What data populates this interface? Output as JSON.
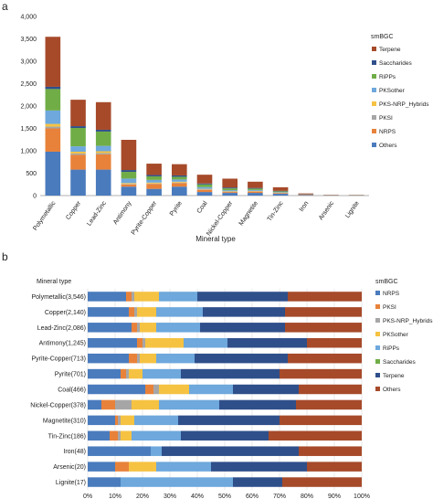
{
  "panels": [
    {
      "label": "a"
    },
    {
      "label": "b"
    }
  ],
  "chart_data": [
    {
      "type": "bar",
      "stacked": true,
      "panel": "a",
      "xlabel": "Mineral type",
      "ylabel": "",
      "ylim": [
        0,
        4000
      ],
      "yticks": [
        "0",
        "500",
        "1,000",
        "1,500",
        "2,000",
        "2,500",
        "3,000",
        "3,500",
        "4,000"
      ],
      "ytick_values": [
        0,
        500,
        1000,
        1500,
        2000,
        2500,
        3000,
        3500,
        4000
      ],
      "legend_title": "smBGC",
      "legend_position": "right",
      "grid": false,
      "categories": [
        "Polymetallic",
        "Copper",
        "Lead-Zinc",
        "Antimony",
        "Pyrite-Copper",
        "Pyrite",
        "Coal",
        "Nickel-Copper",
        "Magnetite",
        "Tin-Zinc",
        "Iron",
        "Arsenic",
        "Lignite"
      ],
      "series": [
        {
          "name": "Others",
          "color": "#4a7bbd",
          "values": [
            980,
            580,
            580,
            200,
            150,
            200,
            80,
            60,
            60,
            40,
            12,
            5,
            3
          ]
        },
        {
          "name": "NRPS",
          "color": "#e8823a",
          "values": [
            520,
            330,
            340,
            50,
            110,
            80,
            50,
            20,
            30,
            15,
            7,
            3,
            2
          ]
        },
        {
          "name": "PKSI",
          "color": "#a6a6a6",
          "values": [
            40,
            30,
            30,
            10,
            10,
            10,
            10,
            10,
            5,
            5,
            1,
            1,
            1
          ]
        },
        {
          "name": "PKS-NRP_Hybrids",
          "color": "#f5c242",
          "values": [
            60,
            40,
            40,
            20,
            20,
            20,
            10,
            10,
            10,
            5,
            1,
            1,
            1
          ]
        },
        {
          "name": "PKSother",
          "color": "#6ea8dc",
          "values": [
            300,
            120,
            120,
            100,
            60,
            50,
            40,
            20,
            20,
            10,
            3,
            2,
            2
          ]
        },
        {
          "name": "RiPPs",
          "color": "#70ad47",
          "values": [
            480,
            410,
            320,
            150,
            80,
            60,
            60,
            40,
            30,
            20,
            4,
            2,
            2
          ]
        },
        {
          "name": "Saccharides",
          "color": "#2f4f8a",
          "values": [
            50,
            40,
            40,
            40,
            30,
            30,
            20,
            20,
            15,
            10,
            2,
            1,
            1
          ]
        },
        {
          "name": "Terpene",
          "color": "#a64a2a",
          "values": [
            1116,
            590,
            616,
            675,
            253,
            251,
            196,
            198,
            140,
            81,
            18,
            5,
            5
          ]
        }
      ]
    },
    {
      "type": "bar",
      "orientation": "horizontal",
      "stacked": true,
      "percent": true,
      "panel": "b",
      "category_header": "Mineral type",
      "legend_title": "smBGC",
      "legend_position": "right",
      "grid": true,
      "xlim": [
        0,
        100
      ],
      "xticks": [
        "0%",
        "10%",
        "20%",
        "30%",
        "40%",
        "50%",
        "60%",
        "70%",
        "80%",
        "90%",
        "100%"
      ],
      "categories": [
        "Polymetallic(3,546)",
        "Copper(2,140)",
        "Lead-Zinc(2,086)",
        "Antimony(1,245)",
        "Pyrite-Copper(713)",
        "Pyrite(701)",
        "Coal(466)",
        "Nickel-Copper(378)",
        "Magnetite(310)",
        "Tin-Zinc(186)",
        "Iron(48)",
        "Arsenic(20)",
        "Lignite(17)"
      ],
      "series": [
        {
          "name": "NRPS",
          "color": "#4a7bbd",
          "values": [
            14,
            15,
            16,
            18,
            15,
            12,
            21,
            5,
            10,
            8,
            23,
            10,
            12
          ]
        },
        {
          "name": "PKSI",
          "color": "#e8823a",
          "values": [
            2,
            2,
            2,
            2,
            3,
            2,
            3,
            5,
            1,
            3,
            0,
            5,
            0
          ]
        },
        {
          "name": "PKS-NRP_Hybrids",
          "color": "#a6a6a6",
          "values": [
            1,
            1,
            1,
            1,
            1,
            1,
            2,
            6,
            1,
            1,
            0,
            0,
            0
          ]
        },
        {
          "name": "PKSother",
          "color": "#f5c242",
          "values": [
            9,
            7,
            6,
            14,
            6,
            5,
            11,
            10,
            5,
            4,
            0,
            10,
            0
          ]
        },
        {
          "name": "RiPPs",
          "color": "#6ea8dc",
          "values": [
            14,
            17,
            16,
            16,
            14,
            14,
            16,
            22,
            16,
            18,
            4,
            20,
            41
          ]
        },
        {
          "name": "Saccharides",
          "color": "#70ad47",
          "values": [
            0,
            0,
            0,
            0,
            0,
            0,
            0,
            0,
            0,
            0,
            0,
            0,
            0
          ]
        },
        {
          "name": "Terpene",
          "color": "#2f4f8a",
          "values": [
            33,
            30,
            31,
            29,
            34,
            36,
            24,
            28,
            37,
            32,
            50,
            35,
            18
          ]
        },
        {
          "name": "Others",
          "color": "#a64a2a",
          "values": [
            27,
            28,
            28,
            20,
            27,
            30,
            23,
            24,
            30,
            34,
            23,
            20,
            29
          ]
        }
      ]
    }
  ]
}
